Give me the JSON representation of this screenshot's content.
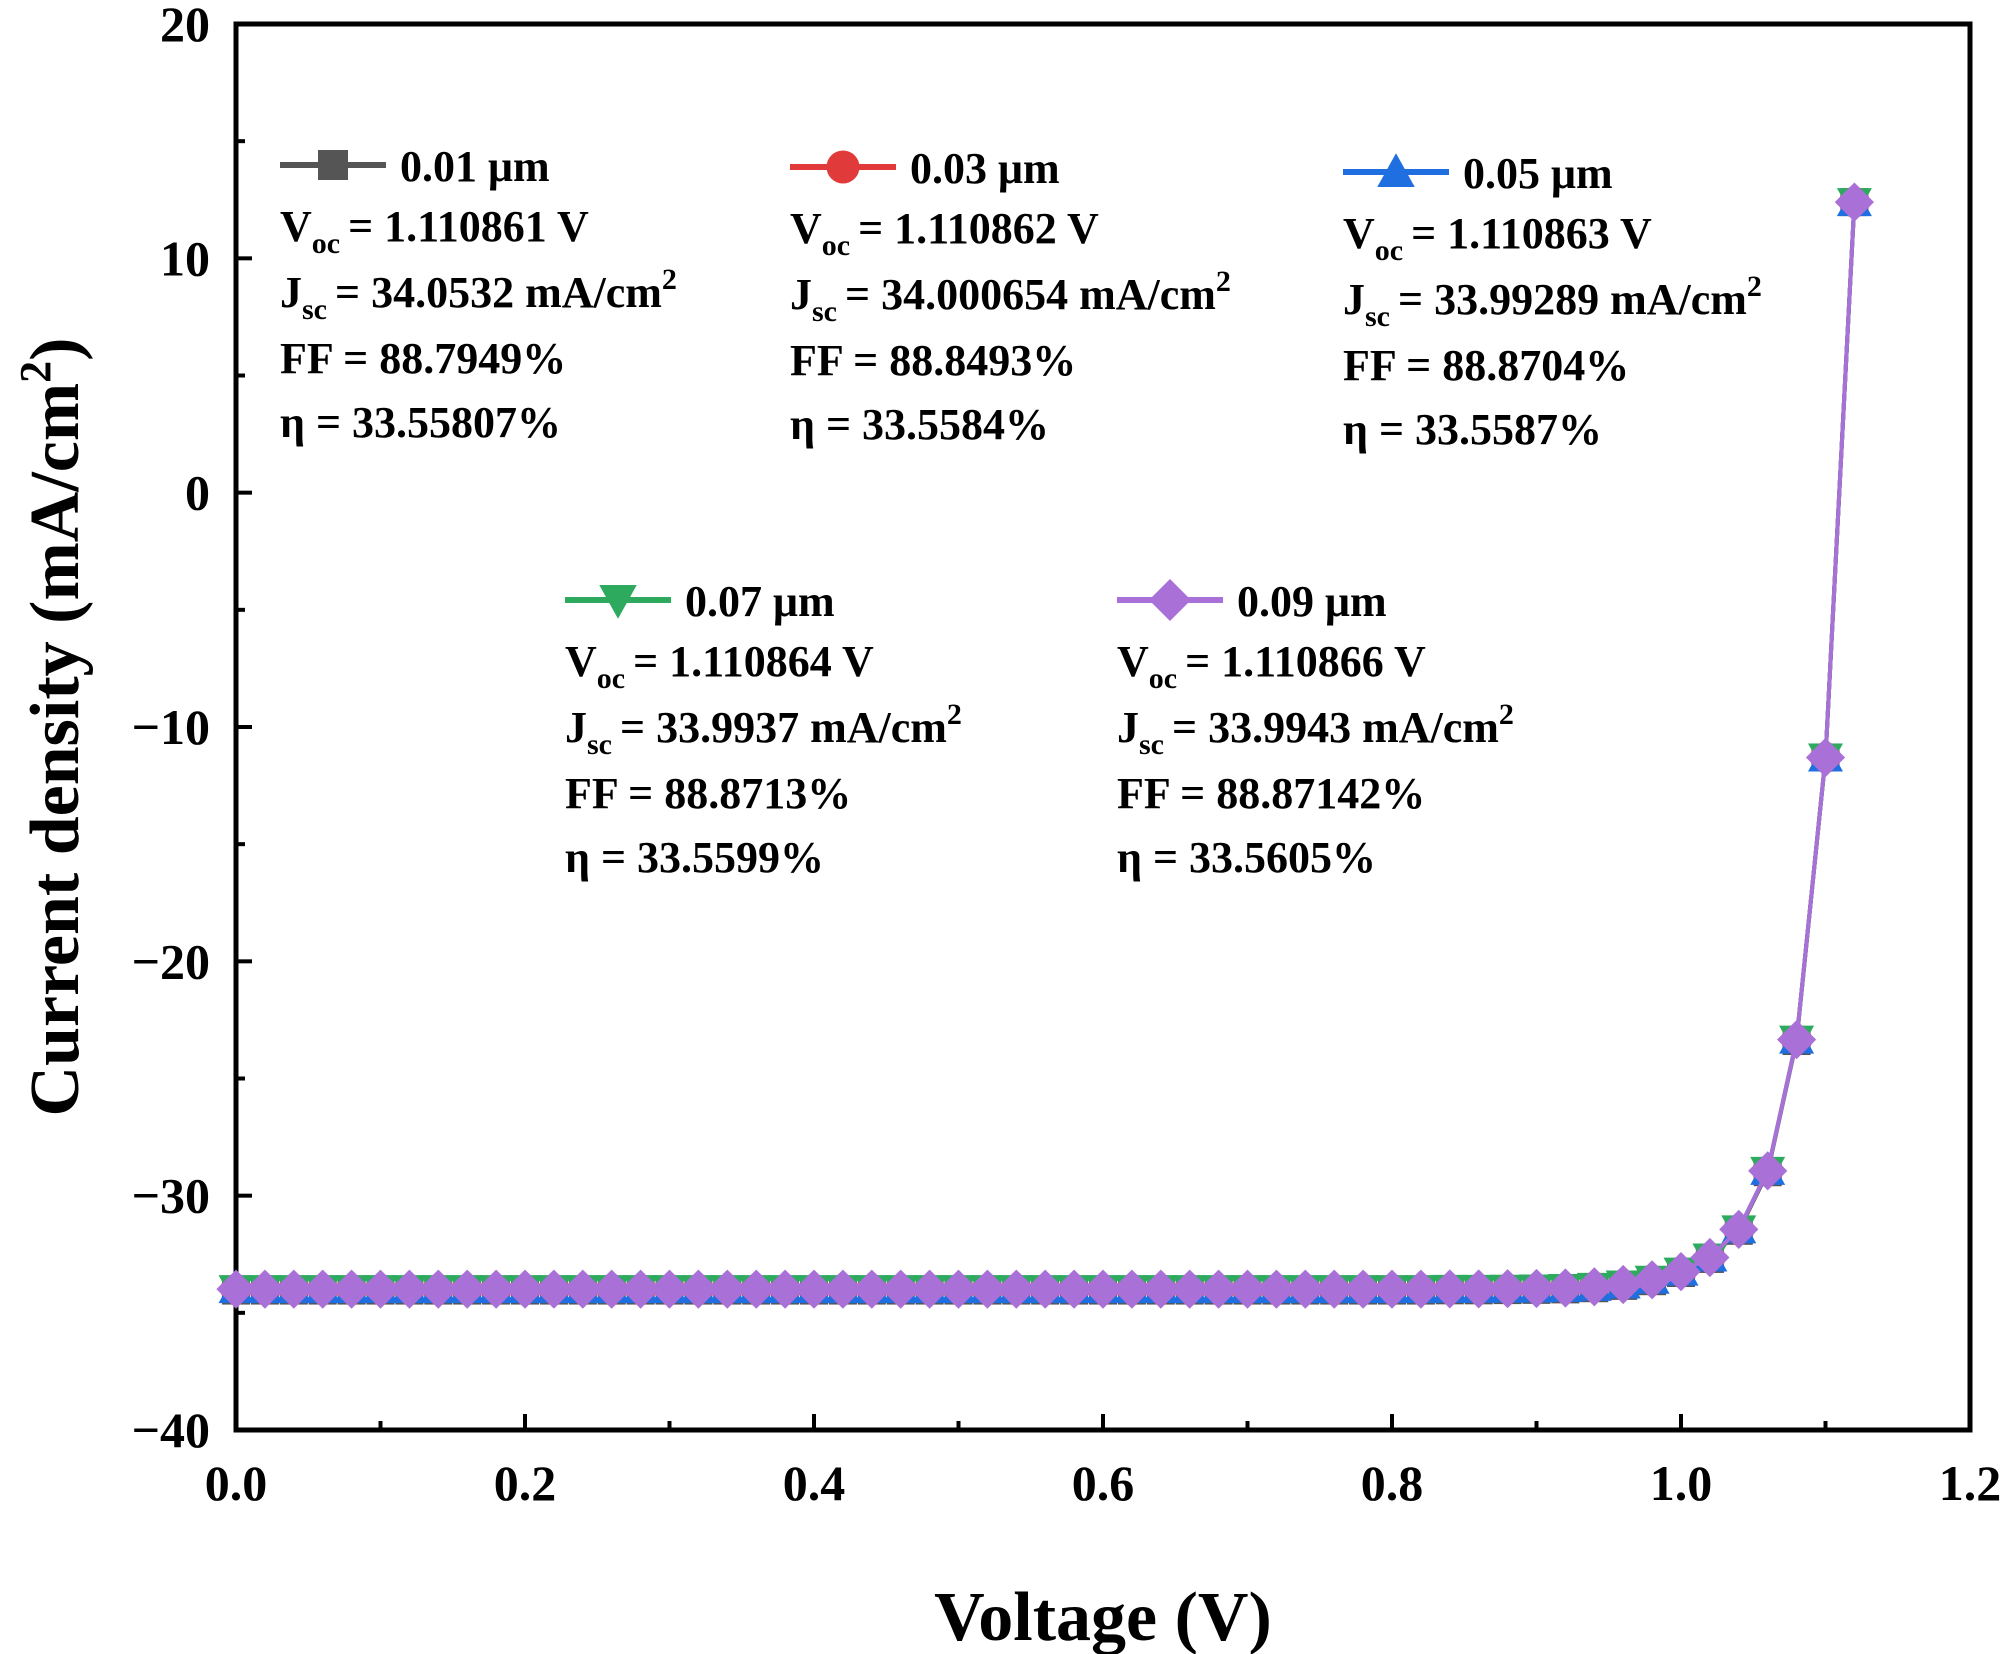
{
  "chart_data": {
    "type": "line",
    "title": "",
    "xlabel": "Voltage (V)",
    "ylabel": "Current density (mA/cm",
    "ylabel_sup": "2",
    "ylabel_close": ")",
    "xlim": [
      0,
      1.2
    ],
    "ylim": [
      -40,
      20
    ],
    "xticks": [
      0,
      0.2,
      0.4,
      0.6,
      0.8,
      1.0,
      1.2
    ],
    "xtick_labels": [
      "0.0",
      "0.2",
      "0.4",
      "0.6",
      "0.8",
      "1.0",
      "1.2"
    ],
    "yticks": [
      20,
      10,
      0,
      -10,
      -20,
      -30,
      -40
    ],
    "ytick_labels": [
      "20",
      "10",
      "0",
      "−10",
      "−20",
      "−30",
      "−40"
    ],
    "x": [
      0,
      0.02,
      0.04,
      0.06,
      0.08,
      0.1,
      0.12,
      0.14,
      0.16,
      0.18,
      0.2,
      0.22,
      0.24,
      0.26,
      0.28,
      0.3,
      0.32,
      0.34,
      0.36,
      0.38,
      0.4,
      0.42,
      0.44,
      0.46,
      0.48,
      0.5,
      0.52,
      0.54,
      0.56,
      0.58,
      0.6,
      0.62,
      0.64,
      0.66,
      0.68,
      0.7,
      0.72,
      0.74,
      0.76,
      0.78,
      0.8,
      0.82,
      0.84,
      0.86,
      0.88,
      0.9,
      0.92,
      0.94,
      0.96,
      0.98,
      1.0,
      1.02,
      1.04,
      1.06,
      1.08,
      1.1,
      1.12
    ],
    "series": [
      {
        "name": "0.01 μm",
        "color": "#555555",
        "marker": "square",
        "values": [
          -34.05,
          -34.05,
          -34.05,
          -34.05,
          -34.05,
          -34.05,
          -34.05,
          -34.05,
          -34.05,
          -34.05,
          -34.05,
          -34.05,
          -34.05,
          -34.05,
          -34.05,
          -34.05,
          -34.05,
          -34.05,
          -34.05,
          -34.05,
          -34.05,
          -34.05,
          -34.05,
          -34.05,
          -34.05,
          -34.05,
          -34.05,
          -34.05,
          -34.05,
          -34.05,
          -34.05,
          -34.05,
          -34.05,
          -34.05,
          -34.05,
          -34.05,
          -34.05,
          -34.05,
          -34.05,
          -34.05,
          -34.05,
          -34.05,
          -34.04,
          -34.04,
          -34.03,
          -34.02,
          -34.0,
          -33.95,
          -33.85,
          -33.65,
          -33.3,
          -32.7,
          -31.5,
          -29.0,
          -23.4,
          -11.3,
          12.4
        ]
      },
      {
        "name": "0.03 μm",
        "color": "#e03a3a",
        "marker": "circle",
        "values": [
          -34.0,
          -34.0,
          -34.0,
          -34.0,
          -34.0,
          -34.0,
          -34.0,
          -34.0,
          -34.0,
          -34.0,
          -34.0,
          -34.0,
          -34.0,
          -34.0,
          -34.0,
          -34.0,
          -34.0,
          -34.0,
          -34.0,
          -34.0,
          -34.0,
          -34.0,
          -34.0,
          -34.0,
          -34.0,
          -34.0,
          -34.0,
          -34.0,
          -34.0,
          -34.0,
          -34.0,
          -34.0,
          -34.0,
          -34.0,
          -34.0,
          -34.0,
          -34.0,
          -34.0,
          -34.0,
          -34.0,
          -34.0,
          -34.0,
          -33.99,
          -33.99,
          -33.98,
          -33.97,
          -33.95,
          -33.9,
          -33.8,
          -33.6,
          -33.25,
          -32.65,
          -31.45,
          -28.95,
          -23.35,
          -11.3,
          12.4
        ]
      },
      {
        "name": "0.05 μm",
        "color": "#1f6fe0",
        "marker": "triangle-up",
        "values": [
          -33.99,
          -33.99,
          -33.99,
          -33.99,
          -33.99,
          -33.99,
          -33.99,
          -33.99,
          -33.99,
          -33.99,
          -33.99,
          -33.99,
          -33.99,
          -33.99,
          -33.99,
          -33.99,
          -33.99,
          -33.99,
          -33.99,
          -33.99,
          -33.99,
          -33.99,
          -33.99,
          -33.99,
          -33.99,
          -33.99,
          -33.99,
          -33.99,
          -33.99,
          -33.99,
          -33.99,
          -33.99,
          -33.99,
          -33.99,
          -33.99,
          -33.99,
          -33.99,
          -33.99,
          -33.99,
          -33.99,
          -33.99,
          -33.99,
          -33.98,
          -33.98,
          -33.97,
          -33.96,
          -33.94,
          -33.89,
          -33.79,
          -33.59,
          -33.24,
          -32.64,
          -31.44,
          -28.94,
          -23.34,
          -11.3,
          12.4
        ]
      },
      {
        "name": "0.07 μm",
        "color": "#2eaa5e",
        "marker": "triangle-down",
        "values": [
          -33.99,
          -33.99,
          -33.99,
          -33.99,
          -33.99,
          -33.99,
          -33.99,
          -33.99,
          -33.99,
          -33.99,
          -33.99,
          -33.99,
          -33.99,
          -33.99,
          -33.99,
          -33.99,
          -33.99,
          -33.99,
          -33.99,
          -33.99,
          -33.99,
          -33.99,
          -33.99,
          -33.99,
          -33.99,
          -33.99,
          -33.99,
          -33.99,
          -33.99,
          -33.99,
          -33.99,
          -33.99,
          -33.99,
          -33.99,
          -33.99,
          -33.99,
          -33.99,
          -33.99,
          -33.99,
          -33.99,
          -33.99,
          -33.99,
          -33.98,
          -33.98,
          -33.97,
          -33.96,
          -33.94,
          -33.89,
          -33.79,
          -33.59,
          -33.24,
          -32.64,
          -31.44,
          -28.94,
          -23.34,
          -11.3,
          12.4
        ]
      },
      {
        "name": "0.09 μm",
        "color": "#a970d8",
        "marker": "diamond",
        "values": [
          -33.99,
          -33.99,
          -33.99,
          -33.99,
          -33.99,
          -33.99,
          -33.99,
          -33.99,
          -33.99,
          -33.99,
          -33.99,
          -33.99,
          -33.99,
          -33.99,
          -33.99,
          -33.99,
          -33.99,
          -33.99,
          -33.99,
          -33.99,
          -33.99,
          -33.99,
          -33.99,
          -33.99,
          -33.99,
          -33.99,
          -33.99,
          -33.99,
          -33.99,
          -33.99,
          -33.99,
          -33.99,
          -33.99,
          -33.99,
          -33.99,
          -33.99,
          -33.99,
          -33.99,
          -33.99,
          -33.99,
          -33.99,
          -33.99,
          -33.98,
          -33.98,
          -33.97,
          -33.96,
          -33.94,
          -33.89,
          -33.79,
          -33.59,
          -33.24,
          -32.64,
          -31.44,
          -28.94,
          -23.34,
          -11.3,
          12.4
        ]
      }
    ],
    "annotations": [
      {
        "name": "0.01 μm",
        "voc": "= 1.110861 V",
        "jsc": "= 34.0532 mA/cm",
        "ff": "FF = 88.7949%",
        "eta": "η = 33.55807%"
      },
      {
        "name": "0.03 μm",
        "voc": "= 1.110862 V",
        "jsc": "= 34.000654 mA/cm",
        "ff": "FF = 88.8493%",
        "eta": "η = 33.5584%"
      },
      {
        "name": "0.05 μm",
        "voc": "= 1.110863 V",
        "jsc": "= 33.99289 mA/cm",
        "ff": "FF = 88.8704%",
        "eta": "η = 33.5587%"
      },
      {
        "name": "0.07 μm",
        "voc": "= 1.110864 V",
        "jsc": "= 33.9937 mA/cm",
        "ff": "FF = 88.8713%",
        "eta": "η = 33.5599%"
      },
      {
        "name": "0.09 μm",
        "voc": "= 1.110866 V",
        "jsc": "= 33.9943 mA/cm",
        "ff": "FF = 88.87142%",
        "eta": "η = 33.5605%"
      }
    ],
    "label_parts": {
      "v": "V",
      "oc": "oc",
      "j": "J",
      "sc": "sc",
      "sup2": "2"
    },
    "legend": "inline-annotations"
  }
}
